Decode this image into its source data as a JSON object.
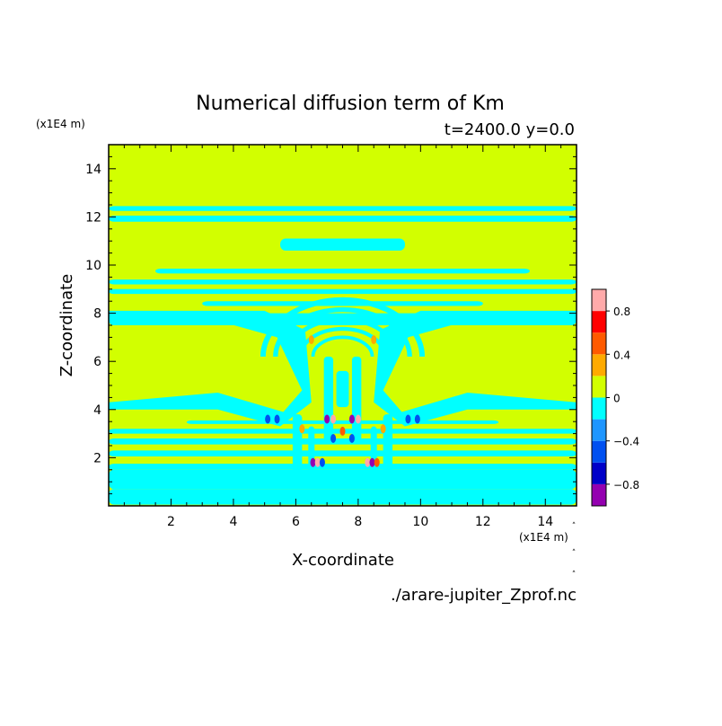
{
  "chart_data": {
    "type": "heatmap",
    "title": "Numerical diffusion term of Km",
    "subtitle": "t=2400.0 y=0.0",
    "xlabel": "X-coordinate",
    "ylabel": "Z-coordinate",
    "x_unit": "(x1E4 m)",
    "y_unit": "(x1E4 m)",
    "xlim": [
      0,
      15
    ],
    "ylim": [
      0,
      15
    ],
    "x_ticks": [
      2,
      4,
      6,
      8,
      10,
      12,
      14
    ],
    "y_ticks": [
      2,
      4,
      6,
      8,
      10,
      12,
      14
    ],
    "grid": false,
    "source": "./arare-jupiter_Zprof.nc",
    "colorbar": {
      "levels": [
        -1.0,
        -0.8,
        -0.6,
        -0.4,
        -0.2,
        0.0,
        0.2,
        0.4,
        0.6,
        0.8,
        1.0
      ],
      "colors": [
        "#9400b0",
        "#0000c8",
        "#0050f0",
        "#1e96ff",
        "#00ffff",
        "#d2ff00",
        "#ffaa00",
        "#ff5a00",
        "#ff0000",
        "#ffaaaa"
      ],
      "tick_values": [
        -0.8,
        -0.4,
        0,
        0.4,
        0.8
      ],
      "tick_labels": [
        "−0.8",
        "−0.4",
        "0",
        "0.4",
        "0.8"
      ]
    },
    "background_level": 0.0,
    "bands": [
      {
        "z0": 0.05,
        "z1": 0.7,
        "x0": 0,
        "x1": 15,
        "value": -0.1
      },
      {
        "z0": 0.7,
        "z1": 1.5,
        "x0": 0,
        "x1": 15,
        "value": -0.1
      },
      {
        "z0": 1.5,
        "z1": 1.75,
        "x0": 0,
        "x1": 15,
        "value": -0.1
      },
      {
        "z0": 2.05,
        "z1": 2.3,
        "x0": 0,
        "x1": 15,
        "value": -0.1
      },
      {
        "z0": 2.55,
        "z1": 2.8,
        "x0": 0,
        "x1": 15,
        "value": -0.1
      },
      {
        "z0": 3.0,
        "z1": 3.2,
        "x0": 0,
        "x1": 15,
        "value": -0.1
      },
      {
        "z0": 3.4,
        "z1": 3.55,
        "x0": 2.5,
        "x1": 12.5,
        "value": -0.1
      },
      {
        "z0": 7.5,
        "z1": 8.0,
        "x0": 0,
        "x1": 15,
        "value": -0.1
      },
      {
        "z0": 8.3,
        "z1": 8.5,
        "x0": 3.0,
        "x1": 12.0,
        "value": -0.1
      },
      {
        "z0": 8.8,
        "z1": 9.0,
        "x0": 0,
        "x1": 15,
        "value": -0.1
      },
      {
        "z0": 9.2,
        "z1": 9.4,
        "x0": 0,
        "x1": 15,
        "value": -0.1
      },
      {
        "z0": 9.65,
        "z1": 9.85,
        "x0": 1.5,
        "x1": 13.5,
        "value": -0.1
      },
      {
        "z0": 11.8,
        "z1": 12.05,
        "x0": 0,
        "x1": 15,
        "value": -0.1
      },
      {
        "z0": 12.25,
        "z1": 12.45,
        "x0": 0,
        "x1": 15,
        "value": -0.1
      },
      {
        "z0": 10.6,
        "z1": 11.1,
        "x0": 5.5,
        "x1": 9.5,
        "value": -0.1
      }
    ],
    "wings": [
      {
        "points": [
          [
            0,
            7.6
          ],
          [
            3.2,
            7.8
          ],
          [
            5.4,
            7.0
          ],
          [
            6.2,
            4.8
          ],
          [
            5.6,
            3.9
          ],
          [
            3.5,
            4.7
          ],
          [
            0,
            4.3
          ],
          [
            0,
            4.0
          ],
          [
            3.5,
            4.0
          ],
          [
            5.5,
            3.3
          ],
          [
            6.5,
            4.3
          ],
          [
            6.3,
            7.3
          ],
          [
            5.0,
            8.1
          ],
          [
            0,
            8.1
          ]
        ],
        "value": -0.1
      },
      {
        "points": [
          [
            15,
            7.6
          ],
          [
            11.8,
            7.8
          ],
          [
            9.6,
            7.0
          ],
          [
            8.8,
            4.8
          ],
          [
            9.4,
            3.9
          ],
          [
            11.5,
            4.7
          ],
          [
            15,
            4.3
          ],
          [
            15,
            4.0
          ],
          [
            11.5,
            4.0
          ],
          [
            9.5,
            3.3
          ],
          [
            8.5,
            4.3
          ],
          [
            8.7,
            7.3
          ],
          [
            10.0,
            8.1
          ],
          [
            15,
            8.1
          ]
        ],
        "value": -0.1
      }
    ],
    "arches": [
      {
        "cx": 7.5,
        "cy": 6.2,
        "rx": 2.55,
        "ry": 2.35,
        "width": 0.22,
        "value": -0.1
      },
      {
        "cx": 7.5,
        "cy": 6.2,
        "rx": 2.15,
        "ry": 1.95,
        "width": 0.2,
        "value": -0.1
      },
      {
        "cx": 7.5,
        "cy": 6.2,
        "rx": 1.75,
        "ry": 1.55,
        "width": 0.18,
        "value": -0.1
      },
      {
        "cx": 7.5,
        "cy": 6.2,
        "rx": 1.35,
        "ry": 1.15,
        "width": 0.16,
        "value": -0.1
      },
      {
        "cx": 7.5,
        "cy": 6.2,
        "rx": 0.95,
        "ry": 0.8,
        "width": 0.14,
        "value": -0.1
      }
    ],
    "columns": [
      {
        "x0": 6.9,
        "x1": 7.2,
        "z0": 2.6,
        "z1": 6.2,
        "value": -0.1
      },
      {
        "x0": 7.8,
        "x1": 8.1,
        "z0": 2.6,
        "z1": 6.2,
        "value": -0.1
      },
      {
        "x0": 7.3,
        "x1": 7.7,
        "z0": 4.1,
        "z1": 5.6,
        "value": -0.1
      },
      {
        "x0": 5.9,
        "x1": 6.2,
        "z0": 1.0,
        "z1": 3.8,
        "value": -0.1
      },
      {
        "x0": 8.8,
        "x1": 9.1,
        "z0": 1.0,
        "z1": 3.8,
        "value": -0.1
      },
      {
        "x0": 6.4,
        "x1": 6.6,
        "z0": 1.3,
        "z1": 3.3,
        "value": -0.1
      },
      {
        "x0": 8.4,
        "x1": 8.6,
        "z0": 1.3,
        "z1": 3.3,
        "value": -0.1
      }
    ],
    "spots": [
      {
        "x": 6.55,
        "z": 1.8,
        "value": -0.9
      },
      {
        "x": 6.7,
        "z": 1.8,
        "value": 0.9
      },
      {
        "x": 6.85,
        "z": 1.8,
        "value": -0.5
      },
      {
        "x": 8.3,
        "z": 1.8,
        "value": 0.9
      },
      {
        "x": 8.45,
        "z": 1.8,
        "value": -0.9
      },
      {
        "x": 8.6,
        "z": 1.8,
        "value": 0.5
      },
      {
        "x": 5.1,
        "z": 3.6,
        "value": -0.5
      },
      {
        "x": 5.4,
        "z": 3.6,
        "value": -0.5
      },
      {
        "x": 9.6,
        "z": 3.6,
        "value": -0.5
      },
      {
        "x": 9.9,
        "z": 3.6,
        "value": -0.5
      },
      {
        "x": 7.0,
        "z": 3.6,
        "value": -0.9
      },
      {
        "x": 7.2,
        "z": 3.6,
        "value": 0.9
      },
      {
        "x": 7.8,
        "z": 3.6,
        "value": -0.9
      },
      {
        "x": 8.0,
        "z": 3.6,
        "value": 0.9
      },
      {
        "x": 7.5,
        "z": 3.1,
        "value": 0.5
      },
      {
        "x": 7.2,
        "z": 2.8,
        "value": -0.5
      },
      {
        "x": 7.8,
        "z": 2.8,
        "value": -0.5
      },
      {
        "x": 6.2,
        "z": 3.2,
        "value": 0.3
      },
      {
        "x": 8.8,
        "z": 3.2,
        "value": 0.3
      },
      {
        "x": 6.5,
        "z": 6.9,
        "value": 0.3
      },
      {
        "x": 8.5,
        "z": 6.9,
        "value": 0.3
      }
    ]
  }
}
